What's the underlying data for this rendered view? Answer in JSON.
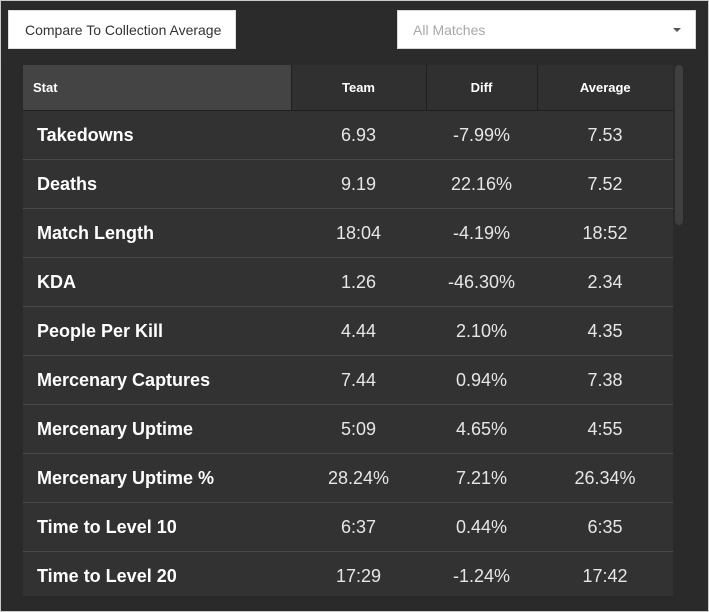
{
  "header": {
    "compare_label": "Compare To Collection Average",
    "match_filter": "All Matches"
  },
  "columns": [
    "Stat",
    "Team",
    "Diff",
    "Average"
  ],
  "rows": [
    {
      "stat": "Takedowns",
      "team": "6.93",
      "diff": "-7.99%",
      "average": "7.53"
    },
    {
      "stat": "Deaths",
      "team": "9.19",
      "diff": "22.16%",
      "average": "7.52"
    },
    {
      "stat": "Match Length",
      "team": "18:04",
      "diff": "-4.19%",
      "average": "18:52"
    },
    {
      "stat": "KDA",
      "team": "1.26",
      "diff": "-46.30%",
      "average": "2.34"
    },
    {
      "stat": "People Per Kill",
      "team": "4.44",
      "diff": "2.10%",
      "average": "4.35"
    },
    {
      "stat": "Mercenary Captures",
      "team": "7.44",
      "diff": "0.94%",
      "average": "7.38"
    },
    {
      "stat": "Mercenary Uptime",
      "team": "5:09",
      "diff": "4.65%",
      "average": "4:55"
    },
    {
      "stat": "Mercenary Uptime %",
      "team": "28.24%",
      "diff": "7.21%",
      "average": "26.34%"
    },
    {
      "stat": "Time to Level 10",
      "team": "6:37",
      "diff": "0.44%",
      "average": "6:35"
    },
    {
      "stat": "Time to Level 20",
      "team": "17:29",
      "diff": "-1.24%",
      "average": "17:42"
    }
  ],
  "icons": {
    "dropdown": "chevron-down-icon"
  }
}
